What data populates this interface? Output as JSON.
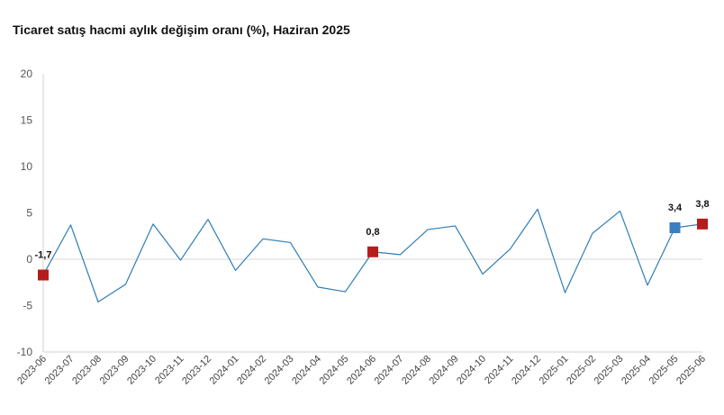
{
  "chart_data": {
    "type": "line",
    "title": "Ticaret satış hacmi aylık değişim oranı (%), Haziran 2025",
    "xlabel": "",
    "ylabel": "",
    "ylim": [
      -10,
      20
    ],
    "yticks": [
      20,
      15,
      10,
      5,
      0,
      -5,
      -10
    ],
    "grid": "zero-line-only",
    "legend": "none",
    "categories": [
      "2023-06",
      "2023-07",
      "2023-08",
      "2023-09",
      "2023-10",
      "2023-11",
      "2023-12",
      "2024-01",
      "2024-02",
      "2024-03",
      "2024-04",
      "2024-05",
      "2024-06",
      "2024-07",
      "2024-08",
      "2024-09",
      "2024-10",
      "2024-11",
      "2024-12",
      "2025-01",
      "2025-02",
      "2025-03",
      "2025-04",
      "2025-05",
      "2025-06"
    ],
    "series": [
      {
        "values": [
          -1.7,
          3.7,
          -4.6,
          -2.7,
          3.8,
          -0.1,
          4.3,
          -1.2,
          2.2,
          1.8,
          -3.0,
          -3.5,
          0.8,
          0.5,
          3.2,
          3.6,
          -1.6,
          1.1,
          5.4,
          -3.6,
          2.8,
          5.2,
          -2.8,
          3.4,
          3.8
        ],
        "color": "#2E7DB5"
      }
    ],
    "highlights": [
      {
        "category": "2023-06",
        "value": -1.7,
        "label": "-1,7",
        "color": "#B71C1C"
      },
      {
        "category": "2024-06",
        "value": 0.8,
        "label": "0,8",
        "color": "#B71C1C"
      },
      {
        "category": "2025-05",
        "value": 3.4,
        "label": "3,4",
        "color": "#3A7FC1"
      },
      {
        "category": "2025-06",
        "value": 3.8,
        "label": "3,8",
        "color": "#B71C1C"
      }
    ]
  }
}
